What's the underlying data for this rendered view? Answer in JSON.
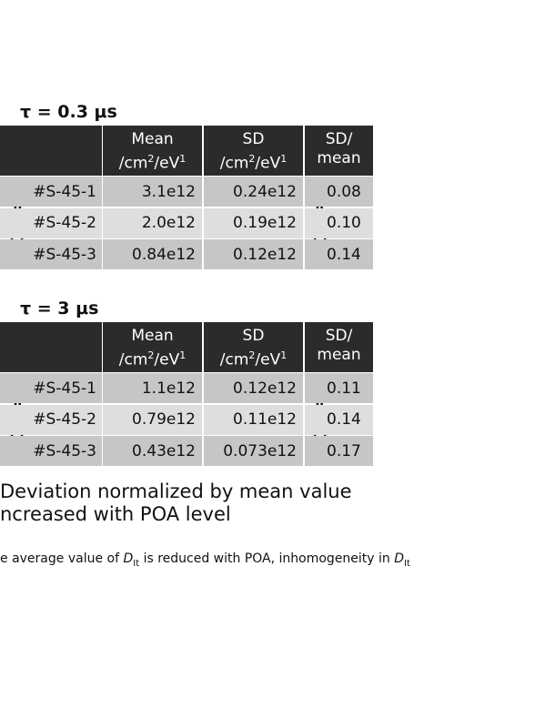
{
  "tables": [
    {
      "title": "τ = 0.3 μs",
      "header": [
        {
          "line1": "Mean",
          "unit": [
            "/cm",
            "2",
            "/eV",
            "1"
          ]
        },
        {
          "line1": "SD",
          "unit": [
            "/cm",
            "2",
            "/eV",
            "1"
          ]
        },
        {
          "line1": "SD/",
          "line2": "mean"
        }
      ],
      "rows": [
        [
          "#S-45-1",
          "3.1e12",
          "0.24e12",
          "0.08"
        ],
        [
          "#S-45-2",
          "2.0e12",
          "0.19e12",
          "0.10"
        ],
        [
          "#S-45-3",
          "0.84e12",
          "0.12e12",
          "0.14"
        ]
      ]
    },
    {
      "title": "τ = 3 μs",
      "header": [
        {
          "line1": "Mean",
          "unit": [
            "/cm",
            "2",
            "/eV",
            "1"
          ]
        },
        {
          "line1": "SD",
          "unit": [
            "/cm",
            "2",
            "/eV",
            "1"
          ]
        },
        {
          "line1": "SD/",
          "line2": "mean"
        }
      ],
      "rows": [
        [
          "#S-45-1",
          "1.1e12",
          "0.12e12",
          "0.11"
        ],
        [
          "#S-45-2",
          "0.79e12",
          "0.11e12",
          "0.14"
        ],
        [
          "#S-45-3",
          "0.43e12",
          "0.073e12",
          "0.17"
        ]
      ]
    }
  ],
  "conclusion": [
    "Deviation normalized by mean value",
    "ncreased with POA level"
  ],
  "note": [
    "e average value of ",
    "D",
    "It",
    " is reduced with POA, inhomogeneity in ",
    "D",
    "It"
  ]
}
